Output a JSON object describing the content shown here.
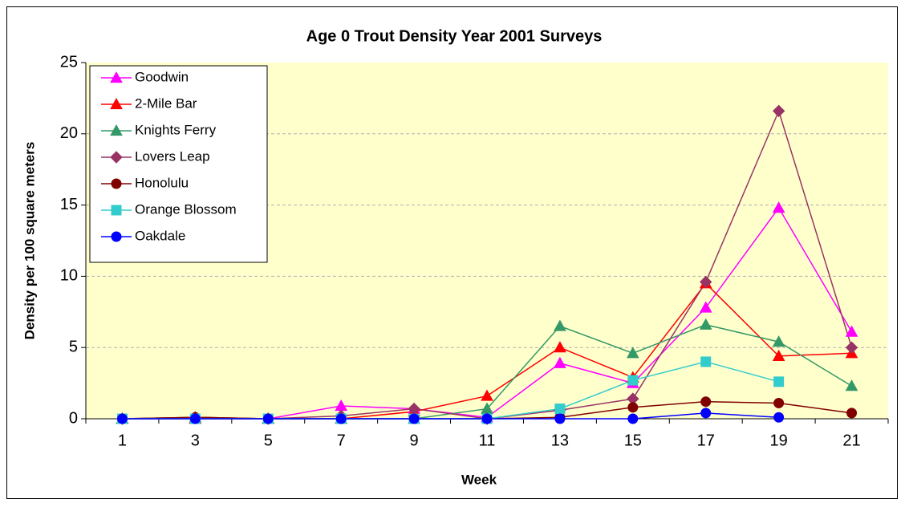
{
  "chart_data": {
    "type": "line",
    "title": "Age 0 Trout Density Year 2001 Surveys",
    "x_label": "Week",
    "y_label": "Density per 100 square meters",
    "categories": [
      "1",
      "3",
      "5",
      "7",
      "9",
      "11",
      "13",
      "15",
      "17",
      "19",
      "21"
    ],
    "ylim": [
      0,
      25
    ],
    "yticks": [
      0,
      5,
      10,
      15,
      20,
      25
    ],
    "grid": true,
    "legend": "upper-left",
    "series": [
      {
        "name": "Goodwin",
        "color": "#ff00ff",
        "marker": "triangle",
        "values": [
          0,
          0,
          0,
          0.9,
          0.7,
          0.1,
          3.9,
          2.5,
          7.8,
          14.8,
          6.1
        ]
      },
      {
        "name": "2-Mile Bar",
        "color": "#ff0000",
        "marker": "triangle",
        "values": [
          0,
          0,
          0,
          0,
          0.5,
          1.6,
          5.0,
          2.9,
          9.5,
          4.4,
          4.6
        ]
      },
      {
        "name": "Knights Ferry",
        "color": "#339966",
        "marker": "triangle",
        "values": [
          0,
          0.1,
          0,
          0,
          0,
          0.7,
          6.5,
          4.6,
          6.6,
          5.4,
          2.3
        ]
      },
      {
        "name": "Lovers Leap",
        "color": "#993366",
        "marker": "diamond",
        "values": [
          0,
          0.1,
          0,
          0.2,
          0.7,
          0,
          0.6,
          1.4,
          9.6,
          21.6,
          5.0
        ]
      },
      {
        "name": "Honolulu",
        "color": "#800000",
        "marker": "circle",
        "values": [
          0,
          0.1,
          0,
          0,
          0,
          0,
          0.1,
          0.8,
          1.2,
          1.1,
          0.4
        ]
      },
      {
        "name": "Orange Blossom",
        "color": "#33cccc",
        "marker": "square",
        "values": [
          0,
          0,
          0,
          0,
          0,
          0,
          0.7,
          2.7,
          4.0,
          2.6,
          null
        ]
      },
      {
        "name": "Oakdale",
        "color": "#0000ff",
        "marker": "circle",
        "values": [
          0,
          0,
          0,
          0,
          0,
          0,
          0,
          0,
          0.4,
          0.1,
          null
        ]
      }
    ]
  }
}
